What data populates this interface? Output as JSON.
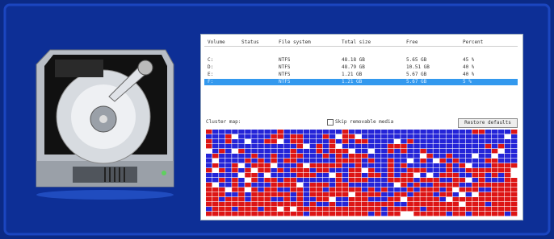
{
  "table": {
    "columns": [
      "Volume",
      "Status",
      "File system",
      "Total size",
      "Free",
      "Percent"
    ],
    "rows": [
      [
        "C:",
        "",
        "NTFS",
        "48.18 GB",
        "5.65 GB",
        "45 %"
      ],
      [
        "D:",
        "",
        "NTFS",
        "48.79 GB",
        "10.51 GB",
        "40 %"
      ],
      [
        "E:",
        "",
        "NTFS",
        "1.21 GB",
        "5.67 GB",
        "40 %"
      ],
      [
        "F:",
        "",
        "NTFS",
        "1.21 GB",
        "5.67 GB",
        "5 %"
      ]
    ]
  },
  "cluster_label": "Cluster map:",
  "checkbox_label": "Skip removable media",
  "button_label": "Restore defaults"
}
